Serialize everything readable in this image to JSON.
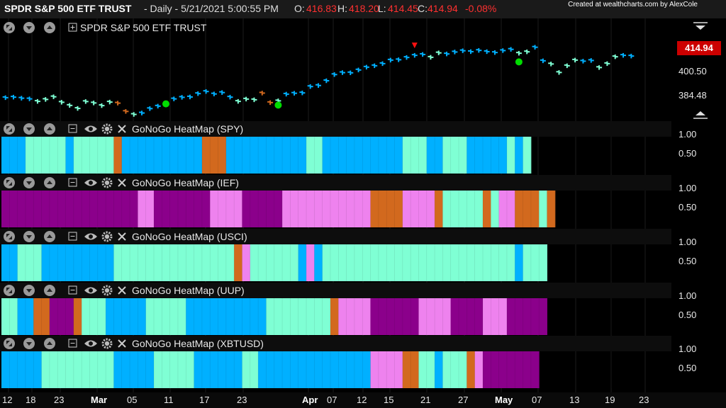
{
  "header": {
    "symbol": "SPDR S&P 500 ETF TRUST",
    "interval": "- Daily - 5/21/2021 5:00:55 PM",
    "open_label": "O:",
    "open": "416.83",
    "high_label": "H:",
    "high": "418.20",
    "low_label": "L:",
    "low": "414.45",
    "close_label": "C:",
    "close": "414.94",
    "change": "-0.08%",
    "credit": "Created at wealthcharts.com by AlexCole"
  },
  "price_pane": {
    "title": "SPDR S&P 500 ETF TRUST",
    "last_price": "414.94",
    "axis_labels": [
      "400.50",
      "384.48"
    ]
  },
  "heatmap_axis": [
    "1.00",
    "0.50"
  ],
  "x_labels": [
    "12",
    "18",
    "23",
    "Mar",
    "05",
    "11",
    "17",
    "23",
    "Apr",
    "07",
    "12",
    "15",
    "21",
    "27",
    "May",
    "07",
    "13",
    "19",
    "23"
  ],
  "colors": {
    "go": "#00b0ff",
    "weak_go": "#7fffd4",
    "nogo": "#8b008b",
    "weak_nogo": "#ee82ee",
    "neutral": "#d2691e",
    "signal": "#00dd00",
    "down_signal": "#ff1111"
  },
  "chart_data": [
    {
      "type": "line",
      "title": "SPDR S&P 500 ETF TRUST",
      "note": "GoNoGo colored daily price bars",
      "ylabel": "",
      "y_ticks": [
        400.5,
        384.48
      ],
      "ylim": [
        378,
        425
      ],
      "series": [
        {
          "values": [
            391.3,
            391.6,
            391.0,
            390.6,
            389.2,
            390.3,
            391.8,
            388.7,
            386.9,
            385.2,
            389.1,
            388.3,
            386.8,
            388.8,
            388.2,
            383.5,
            381.8,
            382.6,
            385.1,
            386.5,
            387.8,
            390.6,
            391.5,
            391.7,
            393.6,
            394.8,
            393.4,
            394.2,
            391.6,
            389.2,
            390.5,
            390.1,
            393.9,
            388.5,
            389.5,
            393.3,
            393.8,
            394.0,
            397.6,
            398.2,
            400.9,
            404.4,
            405.5,
            405.4,
            407.0,
            408.6,
            409.4,
            410.6,
            412.6,
            412.8,
            414.1,
            415.3,
            415.8,
            414.2,
            416.7,
            416.1,
            417.2,
            417.9,
            417.4,
            418.1,
            417.4,
            416.9,
            418.0,
            418.7,
            416.5,
            417.3,
            419.9,
            412.2,
            410.4,
            405.6,
            409.4,
            412.6,
            412.0,
            412.4,
            408.4,
            410.6,
            414.5,
            415.3,
            414.9
          ],
          "colors": [
            "go",
            "go",
            "go",
            "go",
            "weak_go",
            "weak_go",
            "weak_go",
            "weak_go",
            "weak_go",
            "weak_go",
            "weak_go",
            "weak_go",
            "weak_go",
            "weak_go",
            "neutral",
            "neutral",
            "weak_go",
            "go",
            "go",
            "go",
            "go",
            "go",
            "go",
            "go",
            "go",
            "go",
            "go",
            "go",
            "go",
            "weak_go",
            "weak_go",
            "weak_go",
            "neutral",
            "neutral",
            "weak_go",
            "go",
            "go",
            "go",
            "go",
            "go",
            "go",
            "go",
            "go",
            "go",
            "go",
            "go",
            "go",
            "go",
            "go",
            "go",
            "go",
            "go",
            "go",
            "weak_go",
            "weak_go",
            "go",
            "go",
            "go",
            "go",
            "go",
            "go",
            "go",
            "go",
            "go",
            "weak_go",
            "weak_go",
            "go",
            "go",
            "weak_go",
            "weak_go",
            "weak_go",
            "weak_go",
            "go",
            "go",
            "weak_go",
            "weak_go",
            "weak_go",
            "go",
            "go"
          ]
        }
      ],
      "markers": [
        {
          "type": "go-signal",
          "index": 20,
          "value": 390.2
        },
        {
          "type": "go-signal",
          "index": 34,
          "value": 389.5
        },
        {
          "type": "down-signal",
          "index": 51,
          "value": 418.5
        },
        {
          "type": "go-signal",
          "index": 64,
          "value": 414.0
        }
      ]
    },
    {
      "type": "heatmap",
      "title": "GoNoGo HeatMap (SPY)",
      "y_ticks": [
        1.0,
        0.5
      ],
      "segments": [
        [
          "go",
          3
        ],
        [
          "weak_go",
          5
        ],
        [
          "go",
          1
        ],
        [
          "weak_go",
          5
        ],
        [
          "neutral",
          1
        ],
        [
          "go",
          10
        ],
        [
          "neutral",
          3
        ],
        [
          "go",
          10
        ],
        [
          "weak_go",
          2
        ],
        [
          "go",
          10
        ],
        [
          "weak_go",
          3
        ],
        [
          "go",
          2
        ],
        [
          "weak_go",
          3
        ],
        [
          "go",
          5
        ],
        [
          "weak_go",
          1
        ],
        [
          "go",
          1
        ],
        [
          "weak_go",
          1
        ]
      ]
    },
    {
      "type": "heatmap",
      "title": "GoNoGo HeatMap (IEF)",
      "y_ticks": [
        1.0,
        0.5
      ],
      "segments": [
        [
          "nogo",
          17
        ],
        [
          "weak_nogo",
          2
        ],
        [
          "nogo",
          7
        ],
        [
          "weak_nogo",
          4
        ],
        [
          "nogo",
          5
        ],
        [
          "weak_nogo",
          11
        ],
        [
          "neutral",
          4
        ],
        [
          "weak_nogo",
          4
        ],
        [
          "neutral",
          1
        ],
        [
          "weak_go",
          5
        ],
        [
          "neutral",
          1
        ],
        [
          "weak_go",
          1
        ],
        [
          "weak_nogo",
          2
        ],
        [
          "neutral",
          3
        ],
        [
          "weak_go",
          1
        ],
        [
          "neutral",
          1
        ]
      ]
    },
    {
      "type": "heatmap",
      "title": "GoNoGo HeatMap (USCI)",
      "y_ticks": [
        1.0,
        0.5
      ],
      "segments": [
        [
          "go",
          2
        ],
        [
          "weak_go",
          3
        ],
        [
          "go",
          9
        ],
        [
          "weak_go",
          15
        ],
        [
          "neutral",
          1
        ],
        [
          "weak_nogo",
          1
        ],
        [
          "weak_go",
          6
        ],
        [
          "go",
          1
        ],
        [
          "weak_nogo",
          1
        ],
        [
          "go",
          1
        ],
        [
          "weak_go",
          21
        ],
        [
          "weak_go",
          3
        ],
        [
          "go",
          1
        ],
        [
          "weak_go",
          3
        ]
      ]
    },
    {
      "type": "heatmap",
      "title": "GoNoGo HeatMap (UUP)",
      "y_ticks": [
        1.0,
        0.5
      ],
      "segments": [
        [
          "weak_go",
          2
        ],
        [
          "go",
          2
        ],
        [
          "neutral",
          2
        ],
        [
          "nogo",
          3
        ],
        [
          "neutral",
          1
        ],
        [
          "weak_go",
          3
        ],
        [
          "go",
          5
        ],
        [
          "weak_go",
          5
        ],
        [
          "go",
          10
        ],
        [
          "weak_go",
          8
        ],
        [
          "neutral",
          1
        ],
        [
          "weak_nogo",
          4
        ],
        [
          "nogo",
          6
        ],
        [
          "weak_nogo",
          4
        ],
        [
          "nogo",
          4
        ],
        [
          "weak_nogo",
          3
        ],
        [
          "nogo",
          5
        ]
      ]
    },
    {
      "type": "heatmap",
      "title": "GoNoGo HeatMap (XBTUSD)",
      "y_ticks": [
        1.0,
        0.5
      ],
      "segments": [
        [
          "go",
          5
        ],
        [
          "weak_go",
          9
        ],
        [
          "go",
          5
        ],
        [
          "weak_go",
          5
        ],
        [
          "go",
          6
        ],
        [
          "weak_go",
          2
        ],
        [
          "go",
          14
        ],
        [
          "weak_nogo",
          4
        ],
        [
          "neutral",
          2
        ],
        [
          "weak_go",
          2
        ],
        [
          "go",
          1
        ],
        [
          "weak_go",
          3
        ],
        [
          "neutral",
          1
        ],
        [
          "weak_nogo",
          1
        ],
        [
          "nogo",
          7
        ]
      ]
    }
  ]
}
